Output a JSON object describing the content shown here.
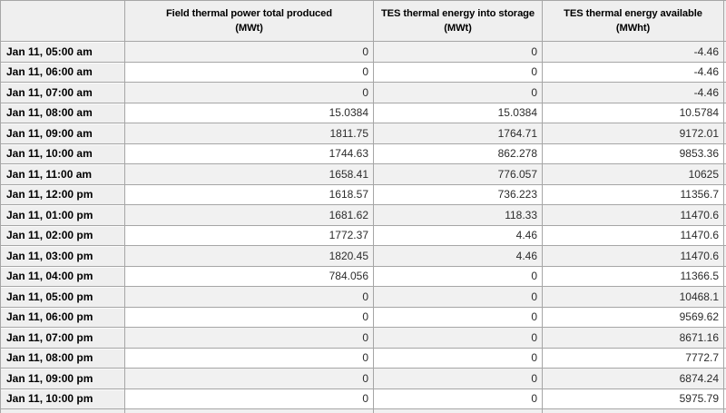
{
  "table": {
    "corner_label": "",
    "columns": [
      {
        "title": "Field thermal power total produced",
        "unit": "(MWt)"
      },
      {
        "title": "TES thermal energy into storage",
        "unit": "(MWt)"
      },
      {
        "title": "TES thermal energy available",
        "unit": "(MWht)"
      }
    ],
    "rows": [
      {
        "time": "Jan 11, 05:00 am",
        "values": [
          "0",
          "0",
          "-4.46"
        ]
      },
      {
        "time": "Jan 11, 06:00 am",
        "values": [
          "0",
          "0",
          "-4.46"
        ]
      },
      {
        "time": "Jan 11, 07:00 am",
        "values": [
          "0",
          "0",
          "-4.46"
        ]
      },
      {
        "time": "Jan 11, 08:00 am",
        "values": [
          "15.0384",
          "15.0384",
          "10.5784"
        ]
      },
      {
        "time": "Jan 11, 09:00 am",
        "values": [
          "1811.75",
          "1764.71",
          "9172.01"
        ]
      },
      {
        "time": "Jan 11, 10:00 am",
        "values": [
          "1744.63",
          "862.278",
          "9853.36"
        ]
      },
      {
        "time": "Jan 11, 11:00 am",
        "values": [
          "1658.41",
          "776.057",
          "10625"
        ]
      },
      {
        "time": "Jan 11, 12:00 pm",
        "values": [
          "1618.57",
          "736.223",
          "11356.7"
        ]
      },
      {
        "time": "Jan 11, 01:00 pm",
        "values": [
          "1681.62",
          "118.33",
          "11470.6"
        ]
      },
      {
        "time": "Jan 11, 02:00 pm",
        "values": [
          "1772.37",
          "4.46",
          "11470.6"
        ]
      },
      {
        "time": "Jan 11, 03:00 pm",
        "values": [
          "1820.45",
          "4.46",
          "11470.6"
        ]
      },
      {
        "time": "Jan 11, 04:00 pm",
        "values": [
          "784.056",
          "0",
          "11366.5"
        ]
      },
      {
        "time": "Jan 11, 05:00 pm",
        "values": [
          "0",
          "0",
          "10468.1"
        ]
      },
      {
        "time": "Jan 11, 06:00 pm",
        "values": [
          "0",
          "0",
          "9569.62"
        ]
      },
      {
        "time": "Jan 11, 07:00 pm",
        "values": [
          "0",
          "0",
          "8671.16"
        ]
      },
      {
        "time": "Jan 11, 08:00 pm",
        "values": [
          "0",
          "0",
          "7772.7"
        ]
      },
      {
        "time": "Jan 11, 09:00 pm",
        "values": [
          "0",
          "0",
          "6874.24"
        ]
      },
      {
        "time": "Jan 11, 10:00 pm",
        "values": [
          "0",
          "0",
          "5975.79"
        ]
      }
    ]
  },
  "colors": {
    "grid_line": "#a6a6a6",
    "label_bg": "#efefef",
    "stripe_bg": "#f1f1f1",
    "white_bg": "#ffffff",
    "label_text": "#000000",
    "value_text": "#2b2b2b"
  }
}
